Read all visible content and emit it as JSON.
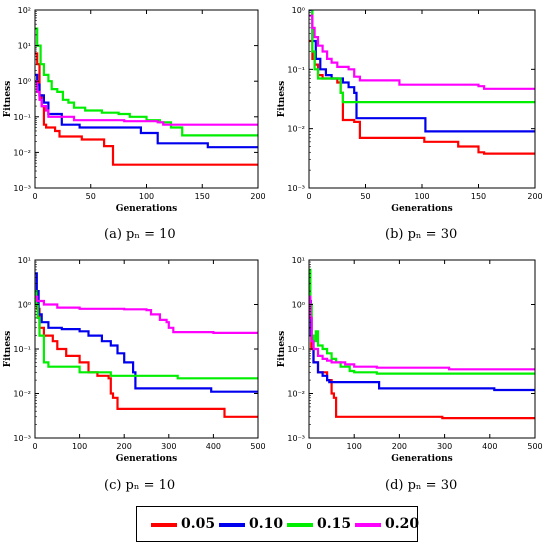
{
  "legend": [
    {
      "label": "0.05",
      "color": "#ff0000"
    },
    {
      "label": "0.10",
      "color": "#0000ee"
    },
    {
      "label": "0.15",
      "color": "#00ee00"
    },
    {
      "label": "0.20",
      "color": "#ff00ff"
    }
  ],
  "chart_data": [
    {
      "type": "line",
      "caption": "(a)  pₙ = 10",
      "xlabel": "Generations",
      "ylabel": "Fitness",
      "yscale": "log",
      "xlim": [
        0,
        200
      ],
      "ylim": [
        0.001,
        100
      ],
      "xticks": [
        "0",
        "50",
        "100",
        "150",
        "200"
      ],
      "yticks": [
        "10⁻³",
        "10⁻²",
        "10⁻¹",
        "10⁰",
        "10¹",
        "10²"
      ],
      "series": [
        {
          "name": "0.05",
          "color": "#ff0000",
          "points": [
            [
              0,
              6
            ],
            [
              2,
              3
            ],
            [
              4,
              0.4
            ],
            [
              6,
              0.2
            ],
            [
              8,
              0.06
            ],
            [
              10,
              0.05
            ],
            [
              15,
              0.05
            ],
            [
              18,
              0.04
            ],
            [
              22,
              0.028
            ],
            [
              40,
              0.028
            ],
            [
              42,
              0.023
            ],
            [
              55,
              0.023
            ],
            [
              62,
              0.015
            ],
            [
              68,
              0.015
            ],
            [
              70,
              0.0045
            ],
            [
              200,
              0.0045
            ]
          ]
        },
        {
          "name": "0.10",
          "color": "#0000ee",
          "points": [
            [
              0,
              1.5
            ],
            [
              2,
              0.8
            ],
            [
              4,
              0.4
            ],
            [
              8,
              0.25
            ],
            [
              12,
              0.12
            ],
            [
              20,
              0.12
            ],
            [
              24,
              0.06
            ],
            [
              38,
              0.06
            ],
            [
              40,
              0.05
            ],
            [
              90,
              0.05
            ],
            [
              95,
              0.035
            ],
            [
              108,
              0.035
            ],
            [
              110,
              0.018
            ],
            [
              150,
              0.018
            ],
            [
              155,
              0.014
            ],
            [
              200,
              0.014
            ]
          ]
        },
        {
          "name": "0.15",
          "color": "#00ee00",
          "points": [
            [
              0,
              30
            ],
            [
              2,
              10
            ],
            [
              5,
              3
            ],
            [
              8,
              1.5
            ],
            [
              12,
              1
            ],
            [
              15,
              0.6
            ],
            [
              20,
              0.5
            ],
            [
              25,
              0.3
            ],
            [
              30,
              0.25
            ],
            [
              35,
              0.18
            ],
            [
              45,
              0.15
            ],
            [
              60,
              0.13
            ],
            [
              75,
              0.12
            ],
            [
              85,
              0.1
            ],
            [
              100,
              0.08
            ],
            [
              110,
              0.08
            ],
            [
              112,
              0.07
            ],
            [
              120,
              0.07
            ],
            [
              122,
              0.05
            ],
            [
              130,
              0.05
            ],
            [
              132,
              0.03
            ],
            [
              200,
              0.03
            ]
          ]
        },
        {
          "name": "0.20",
          "color": "#ff00ff",
          "points": [
            [
              0,
              1
            ],
            [
              2,
              0.5
            ],
            [
              4,
              0.3
            ],
            [
              6,
              0.2
            ],
            [
              10,
              0.15
            ],
            [
              12,
              0.1
            ],
            [
              30,
              0.1
            ],
            [
              35,
              0.08
            ],
            [
              80,
              0.075
            ],
            [
              110,
              0.07
            ],
            [
              115,
              0.06
            ],
            [
              200,
              0.06
            ]
          ]
        }
      ]
    },
    {
      "type": "line",
      "caption": "(b)  pₙ = 30",
      "xlabel": "Generations",
      "ylabel": "Fitness",
      "yscale": "log",
      "xlim": [
        0,
        200
      ],
      "ylim": [
        0.001,
        1
      ],
      "xticks": [
        "0",
        "50",
        "100",
        "150",
        "200"
      ],
      "yticks": [
        "10⁻³",
        "10⁻²",
        "10⁻¹",
        "10⁰"
      ],
      "series": [
        {
          "name": "0.05",
          "color": "#ff0000",
          "points": [
            [
              0,
              0.3
            ],
            [
              3,
              0.15
            ],
            [
              5,
              0.12
            ],
            [
              8,
              0.08
            ],
            [
              12,
              0.07
            ],
            [
              20,
              0.07
            ],
            [
              25,
              0.06
            ],
            [
              28,
              0.04
            ],
            [
              30,
              0.014
            ],
            [
              40,
              0.013
            ],
            [
              43,
              0.013
            ],
            [
              45,
              0.007
            ],
            [
              100,
              0.007
            ],
            [
              102,
              0.006
            ],
            [
              130,
              0.006
            ],
            [
              132,
              0.005
            ],
            [
              145,
              0.005
            ],
            [
              150,
              0.004
            ],
            [
              155,
              0.0038
            ],
            [
              200,
              0.0038
            ]
          ]
        },
        {
          "name": "0.10",
          "color": "#0000ee",
          "points": [
            [
              0,
              1
            ],
            [
              3,
              0.3
            ],
            [
              6,
              0.15
            ],
            [
              10,
              0.1
            ],
            [
              15,
              0.08
            ],
            [
              20,
              0.07
            ],
            [
              25,
              0.07
            ],
            [
              30,
              0.06
            ],
            [
              35,
              0.05
            ],
            [
              40,
              0.04
            ],
            [
              42,
              0.015
            ],
            [
              100,
              0.015
            ],
            [
              103,
              0.009
            ],
            [
              200,
              0.009
            ]
          ]
        },
        {
          "name": "0.15",
          "color": "#00ee00",
          "points": [
            [
              0,
              1.3
            ],
            [
              3,
              0.2
            ],
            [
              5,
              0.1
            ],
            [
              8,
              0.07
            ],
            [
              25,
              0.07
            ],
            [
              28,
              0.04
            ],
            [
              30,
              0.028
            ],
            [
              200,
              0.028
            ]
          ]
        },
        {
          "name": "0.20",
          "color": "#ff00ff",
          "points": [
            [
              0,
              0.8
            ],
            [
              3,
              0.5
            ],
            [
              5,
              0.35
            ],
            [
              8,
              0.25
            ],
            [
              12,
              0.2
            ],
            [
              16,
              0.15
            ],
            [
              20,
              0.13
            ],
            [
              25,
              0.11
            ],
            [
              35,
              0.1
            ],
            [
              40,
              0.075
            ],
            [
              45,
              0.065
            ],
            [
              75,
              0.065
            ],
            [
              80,
              0.055
            ],
            [
              150,
              0.052
            ],
            [
              155,
              0.047
            ],
            [
              200,
              0.047
            ]
          ]
        }
      ]
    },
    {
      "type": "line",
      "caption": "(c)  pₙ = 10",
      "xlabel": "Generations",
      "ylabel": "Fitness",
      "yscale": "log",
      "xlim": [
        0,
        500
      ],
      "ylim": [
        0.001,
        10
      ],
      "xticks": [
        "0",
        "100",
        "200",
        "300",
        "400",
        "500"
      ],
      "yticks": [
        "10⁻³",
        "10⁻²",
        "10⁻¹",
        "10⁰",
        "10¹"
      ],
      "series": [
        {
          "name": "0.05",
          "color": "#ff0000",
          "points": [
            [
              0,
              2
            ],
            [
              5,
              0.8
            ],
            [
              10,
              0.3
            ],
            [
              20,
              0.2
            ],
            [
              40,
              0.15
            ],
            [
              50,
              0.1
            ],
            [
              70,
              0.07
            ],
            [
              100,
              0.05
            ],
            [
              120,
              0.03
            ],
            [
              140,
              0.025
            ],
            [
              165,
              0.022
            ],
            [
              170,
              0.01
            ],
            [
              175,
              0.008
            ],
            [
              185,
              0.0045
            ],
            [
              420,
              0.0045
            ],
            [
              425,
              0.003
            ],
            [
              500,
              0.003
            ]
          ]
        },
        {
          "name": "0.10",
          "color": "#0000ee",
          "points": [
            [
              0,
              5
            ],
            [
              4,
              2
            ],
            [
              8,
              0.6
            ],
            [
              15,
              0.4
            ],
            [
              30,
              0.3
            ],
            [
              60,
              0.28
            ],
            [
              100,
              0.25
            ],
            [
              120,
              0.2
            ],
            [
              150,
              0.15
            ],
            [
              170,
              0.12
            ],
            [
              185,
              0.08
            ],
            [
              200,
              0.05
            ],
            [
              220,
              0.03
            ],
            [
              225,
              0.013
            ],
            [
              390,
              0.013
            ],
            [
              395,
              0.011
            ],
            [
              500,
              0.011
            ]
          ]
        },
        {
          "name": "0.15",
          "color": "#00ee00",
          "points": [
            [
              0,
              2
            ],
            [
              3,
              1
            ],
            [
              6,
              0.5
            ],
            [
              10,
              0.2
            ],
            [
              20,
              0.05
            ],
            [
              30,
              0.04
            ],
            [
              95,
              0.04
            ],
            [
              100,
              0.03
            ],
            [
              170,
              0.025
            ],
            [
              310,
              0.025
            ],
            [
              320,
              0.022
            ],
            [
              500,
              0.022
            ]
          ]
        },
        {
          "name": "0.20",
          "color": "#ff00ff",
          "points": [
            [
              0,
              1.5
            ],
            [
              5,
              1.2
            ],
            [
              20,
              1.0
            ],
            [
              50,
              0.85
            ],
            [
              100,
              0.8
            ],
            [
              200,
              0.78
            ],
            [
              250,
              0.75
            ],
            [
              260,
              0.6
            ],
            [
              280,
              0.45
            ],
            [
              295,
              0.4
            ],
            [
              300,
              0.3
            ],
            [
              310,
              0.24
            ],
            [
              400,
              0.23
            ],
            [
              500,
              0.22
            ]
          ]
        }
      ]
    },
    {
      "type": "line",
      "caption": "(d)  pₙ = 30",
      "xlabel": "Generations",
      "ylabel": "Fitness",
      "yscale": "log",
      "xlim": [
        0,
        500
      ],
      "ylim": [
        0.001,
        10
      ],
      "xticks": [
        "0",
        "100",
        "200",
        "300",
        "400",
        "500"
      ],
      "yticks": [
        "10⁻³",
        "10⁻²",
        "10⁻¹",
        "10⁰",
        "10¹"
      ],
      "series": [
        {
          "name": "0.05",
          "color": "#ff0000",
          "points": [
            [
              0,
              0.3
            ],
            [
              5,
              0.1
            ],
            [
              10,
              0.05
            ],
            [
              20,
              0.03
            ],
            [
              40,
              0.02
            ],
            [
              50,
              0.01
            ],
            [
              55,
              0.008
            ],
            [
              60,
              0.003
            ],
            [
              290,
              0.003
            ],
            [
              295,
              0.0028
            ],
            [
              500,
              0.0028
            ]
          ]
        },
        {
          "name": "0.10",
          "color": "#0000ee",
          "points": [
            [
              0,
              1.2
            ],
            [
              4,
              0.2
            ],
            [
              10,
              0.05
            ],
            [
              20,
              0.03
            ],
            [
              30,
              0.025
            ],
            [
              40,
              0.02
            ],
            [
              45,
              0.018
            ],
            [
              150,
              0.018
            ],
            [
              155,
              0.013
            ],
            [
              400,
              0.013
            ],
            [
              410,
              0.012
            ],
            [
              500,
              0.012
            ]
          ]
        },
        {
          "name": "0.15",
          "color": "#00ee00",
          "points": [
            [
              0,
              6
            ],
            [
              3,
              1
            ],
            [
              6,
              0.2
            ],
            [
              10,
              0.15
            ],
            [
              15,
              0.25
            ],
            [
              20,
              0.12
            ],
            [
              30,
              0.1
            ],
            [
              40,
              0.08
            ],
            [
              50,
              0.06
            ],
            [
              60,
              0.05
            ],
            [
              70,
              0.04
            ],
            [
              90,
              0.032
            ],
            [
              100,
              0.03
            ],
            [
              150,
              0.028
            ],
            [
              500,
              0.027
            ]
          ]
        },
        {
          "name": "0.20",
          "color": "#ff00ff",
          "points": [
            [
              0,
              1.5
            ],
            [
              3,
              0.5
            ],
            [
              6,
              0.15
            ],
            [
              10,
              0.1
            ],
            [
              20,
              0.07
            ],
            [
              30,
              0.06
            ],
            [
              40,
              0.055
            ],
            [
              50,
              0.05
            ],
            [
              80,
              0.045
            ],
            [
              100,
              0.04
            ],
            [
              150,
              0.038
            ],
            [
              300,
              0.038
            ],
            [
              310,
              0.035
            ],
            [
              500,
              0.035
            ]
          ]
        }
      ]
    }
  ]
}
